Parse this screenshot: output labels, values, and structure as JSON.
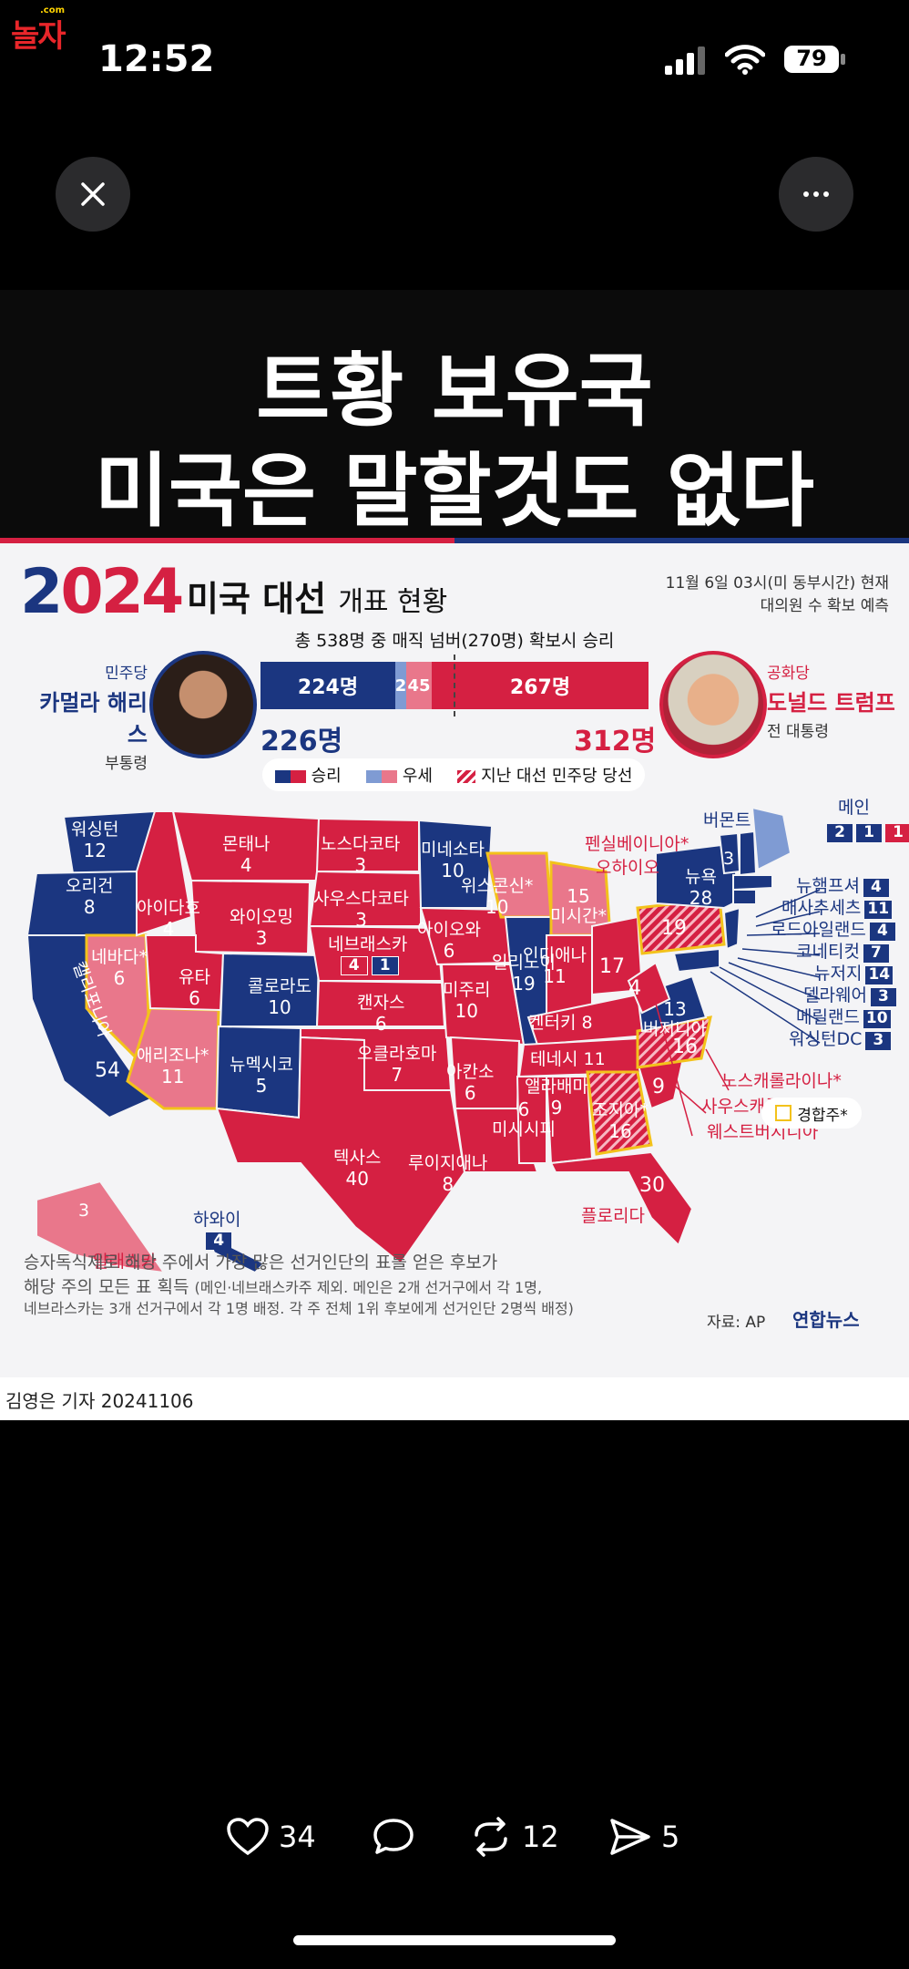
{
  "status": {
    "site_logo": "놀자",
    "site_logo_sub": ".com",
    "time": "12:52",
    "battery": "79"
  },
  "image": {
    "headline_line1": "트황 보유국",
    "headline_line2": "미국은 말할것도 없다",
    "infographic": {
      "year_prefix": "2",
      "year_suffix": "024",
      "title_main": "미국 대선",
      "title_sub": "개표 현황",
      "date_line1": "11월 6일 03시(미 동부시간) 현재",
      "date_line2": "대의원 수 확보 예측",
      "magic_number": "총 538명 중 매직 넘버(270명) 확보시 승리",
      "harris": {
        "party": "민주당",
        "name": "카멀라 해리스",
        "role": "부통령",
        "total": "226명"
      },
      "trump": {
        "party": "공화당",
        "name": "도널드 트럼프",
        "role": "전 대통령",
        "total": "312명"
      },
      "bar": {
        "dem_won": "224명",
        "dem_lean": "2",
        "rep_lean": "45",
        "rep_won": "267명"
      },
      "legend": {
        "win": "승리",
        "lean": "우세",
        "prev_dem": "지난 대선 민주당 당선"
      },
      "states": {
        "wa": {
          "name": "워싱턴",
          "ev": "12"
        },
        "or": {
          "name": "오리건",
          "ev": "8"
        },
        "ca": {
          "name": "캘리포니아",
          "ev": "54"
        },
        "nv": {
          "name": "네바다*",
          "ev": "6"
        },
        "id": {
          "name": "아이다호",
          "ev": "4"
        },
        "mt": {
          "name": "몬태나",
          "ev": "4"
        },
        "wy": {
          "name": "와이오밍",
          "ev": "3"
        },
        "ut": {
          "name": "유타",
          "ev": "6"
        },
        "az": {
          "name": "애리조나*",
          "ev": "11"
        },
        "co": {
          "name": "콜로라도",
          "ev": "10"
        },
        "nm": {
          "name": "뉴멕시코",
          "ev": "5"
        },
        "nd": {
          "name": "노스다코타",
          "ev": "3"
        },
        "sd": {
          "name": "사우스다코타",
          "ev": "3"
        },
        "ne": {
          "name": "네브래스카",
          "ev_r": "4",
          "ev_d": "1"
        },
        "ks": {
          "name": "캔자스",
          "ev": "6"
        },
        "ok": {
          "name": "오클라호마",
          "ev": "7"
        },
        "tx": {
          "name": "텍사스",
          "ev": "40"
        },
        "mn": {
          "name": "미네소타",
          "ev": "10"
        },
        "ia": {
          "name": "아이오와",
          "ev": "6"
        },
        "mo": {
          "name": "미주리",
          "ev": "10"
        },
        "ar": {
          "name": "아칸소",
          "ev": "6"
        },
        "la": {
          "name": "루이지애나",
          "ev": "8"
        },
        "wi": {
          "name": "위스콘신*",
          "ev": "10"
        },
        "il": {
          "name": "일리노이",
          "ev": "19"
        },
        "mi": {
          "name": "미시간*",
          "ev": "15"
        },
        "in": {
          "name": "인디애나",
          "ev": "11"
        },
        "oh": {
          "name": "오하이오",
          "ev": "17"
        },
        "ky": {
          "name": "켄터키",
          "ev": "8"
        },
        "tn": {
          "name": "테네시",
          "ev": "11"
        },
        "ms": {
          "name": "미시시피",
          "ev": "6"
        },
        "al": {
          "name": "앨라배마",
          "ev": "9"
        },
        "ga": {
          "name": "조지아*",
          "ev": "16"
        },
        "fl": {
          "name": "플로리다",
          "ev": "30"
        },
        "pa": {
          "name": "펜실베이니아*",
          "ev": "19"
        },
        "wv": {
          "ev": "4"
        },
        "va": {
          "name": "버지니아",
          "ev": "13"
        },
        "nc": {
          "name": "노스캐롤라이나*",
          "ev": "16"
        },
        "sc": {
          "name": "사우스캐롤라이나",
          "ev": "9"
        },
        "wv_label": "웨스트버지니아",
        "ny": {
          "name": "뉴욕",
          "ev": "28"
        },
        "vt": {
          "name": "버몬트",
          "ev": "3"
        },
        "me": {
          "name": "메인",
          "ev_1": "2",
          "ev_2": "1",
          "ev_3": "1"
        },
        "nh": {
          "name": "뉴햄프셔",
          "ev": "4"
        },
        "ma": {
          "name": "매사추세츠",
          "ev": "11"
        },
        "ri": {
          "name": "로드아일랜드",
          "ev": "4"
        },
        "ct": {
          "name": "코네티컷",
          "ev": "7"
        },
        "nj": {
          "name": "뉴저지",
          "ev": "14"
        },
        "de": {
          "name": "델라웨어",
          "ev": "3"
        },
        "md": {
          "name": "메릴랜드",
          "ev": "10"
        },
        "dc": {
          "name": "워싱턴DC",
          "ev": "3"
        },
        "ak": {
          "name": "알래스카",
          "ev": "3"
        },
        "hi": {
          "name": "하와이",
          "ev": "4"
        }
      },
      "swing_legend": "경합주*",
      "footnote_line1": "승자독식제로 해당 주에서 가장 많은 선거인단의 표를 얻은 후보가",
      "footnote_line2": "해당 주의 모든 표 획득",
      "footnote_line2_small": "(메인·네브래스카주 제외. 메인은 2개 선거구에서 각 1명,",
      "footnote_line3": "네브라스카는 3개 선거구에서 각 1명 배정. 각 주 전체 1위 후보에게 선거인단 2명씩 배정)",
      "source": "자료: AP",
      "agency": "연합뉴스",
      "credit": "김영은 기자  20241106"
    }
  },
  "actions": {
    "likes": "34",
    "reposts": "12",
    "shares": "5"
  },
  "colors": {
    "dem": "#1b3680",
    "dem_lean": "#7f9bd3",
    "rep": "#d52042",
    "rep_lean": "#e9778b",
    "swing_outline": "#f3c21b"
  }
}
